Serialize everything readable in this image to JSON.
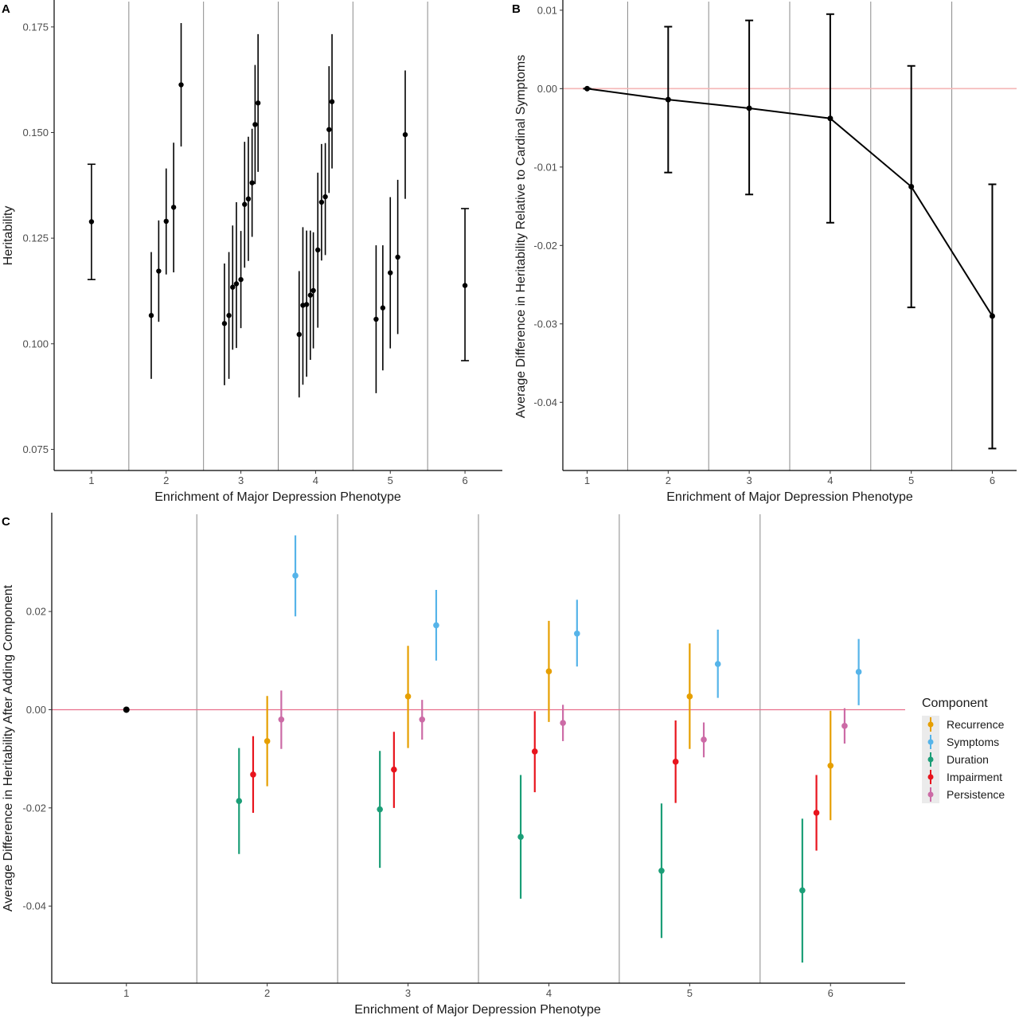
{
  "chart_data": [
    {
      "panel": "A",
      "type": "scatter",
      "xlabel": "Enrichment of Major Depression Phenotype",
      "ylabel": "Heritability",
      "x_ticks": [
        "1",
        "2",
        "3",
        "4",
        "5",
        "6"
      ],
      "y_ticks": [
        "0.075",
        "0.100",
        "0.125",
        "0.150",
        "0.175"
      ],
      "xlim": [
        0.5,
        6.5
      ],
      "ylim": [
        0.07,
        0.181
      ],
      "separators": [
        1.5,
        2.5,
        3.5,
        4.5,
        5.5
      ],
      "grid": false,
      "points": [
        {
          "x": 1.0,
          "y": 0.1289,
          "lo": 0.1152,
          "hi": 0.1425
        },
        {
          "x": 1.8,
          "y": 0.1067,
          "lo": 0.0917,
          "hi": 0.1217
        },
        {
          "x": 1.9,
          "y": 0.1172,
          "lo": 0.1052,
          "hi": 0.1292
        },
        {
          "x": 2.0,
          "y": 0.129,
          "lo": 0.1164,
          "hi": 0.1415
        },
        {
          "x": 2.1,
          "y": 0.1323,
          "lo": 0.1169,
          "hi": 0.1476
        },
        {
          "x": 2.2,
          "y": 0.1613,
          "lo": 0.1467,
          "hi": 0.1759
        },
        {
          "x": 2.78,
          "y": 0.1048,
          "lo": 0.0902,
          "hi": 0.119
        },
        {
          "x": 2.84,
          "y": 0.1067,
          "lo": 0.0917,
          "hi": 0.1217
        },
        {
          "x": 2.89,
          "y": 0.1134,
          "lo": 0.0986,
          "hi": 0.128
        },
        {
          "x": 2.94,
          "y": 0.1142,
          "lo": 0.099,
          "hi": 0.1335
        },
        {
          "x": 3.0,
          "y": 0.1152,
          "lo": 0.1037,
          "hi": 0.1267
        },
        {
          "x": 3.05,
          "y": 0.133,
          "lo": 0.118,
          "hi": 0.1478
        },
        {
          "x": 3.1,
          "y": 0.1343,
          "lo": 0.1196,
          "hi": 0.149
        },
        {
          "x": 3.15,
          "y": 0.1381,
          "lo": 0.1253,
          "hi": 0.1509
        },
        {
          "x": 3.19,
          "y": 0.1519,
          "lo": 0.1378,
          "hi": 0.166
        },
        {
          "x": 3.23,
          "y": 0.157,
          "lo": 0.1407,
          "hi": 0.1733
        },
        {
          "x": 3.78,
          "y": 0.1022,
          "lo": 0.0873,
          "hi": 0.1172
        },
        {
          "x": 3.83,
          "y": 0.1091,
          "lo": 0.0903,
          "hi": 0.1276
        },
        {
          "x": 3.88,
          "y": 0.1093,
          "lo": 0.0922,
          "hi": 0.1268
        },
        {
          "x": 3.93,
          "y": 0.1115,
          "lo": 0.0962,
          "hi": 0.1268
        },
        {
          "x": 3.97,
          "y": 0.1126,
          "lo": 0.0989,
          "hi": 0.1264
        },
        {
          "x": 4.03,
          "y": 0.1222,
          "lo": 0.1038,
          "hi": 0.1405
        },
        {
          "x": 4.08,
          "y": 0.1335,
          "lo": 0.1197,
          "hi": 0.1473
        },
        {
          "x": 4.13,
          "y": 0.1348,
          "lo": 0.121,
          "hi": 0.1475
        },
        {
          "x": 4.18,
          "y": 0.1507,
          "lo": 0.1357,
          "hi": 0.1657
        },
        {
          "x": 4.22,
          "y": 0.1573,
          "lo": 0.1415,
          "hi": 0.1733
        },
        {
          "x": 4.81,
          "y": 0.1058,
          "lo": 0.0883,
          "hi": 0.1233
        },
        {
          "x": 4.9,
          "y": 0.1085,
          "lo": 0.0937,
          "hi": 0.1233
        },
        {
          "x": 5.0,
          "y": 0.1168,
          "lo": 0.0989,
          "hi": 0.1347
        },
        {
          "x": 5.1,
          "y": 0.1205,
          "lo": 0.1023,
          "hi": 0.1388
        },
        {
          "x": 5.2,
          "y": 0.1495,
          "lo": 0.1343,
          "hi": 0.1647
        },
        {
          "x": 6.0,
          "y": 0.1138,
          "lo": 0.096,
          "hi": 0.132
        }
      ]
    },
    {
      "panel": "B",
      "type": "line",
      "xlabel": "Enrichment of Major Depression Phenotype",
      "ylabel": "Average Difference in Heritability Relative to Cardinal Symptoms",
      "x_ticks": [
        "1",
        "2",
        "3",
        "4",
        "5",
        "6"
      ],
      "y_ticks": [
        "-0.04",
        "-0.03",
        "-0.02",
        "-0.01",
        "0.00",
        "0.01"
      ],
      "xlim": [
        0.7,
        6.3
      ],
      "ylim": [
        -0.0487,
        0.0111
      ],
      "separators": [
        1.5,
        2.5,
        3.5,
        4.5,
        5.5
      ],
      "reference_line": 0.0,
      "grid": false,
      "points": [
        {
          "x": 1,
          "y": 0.0,
          "lo": 0.0,
          "hi": 0.0
        },
        {
          "x": 2,
          "y": -0.0014,
          "lo": -0.0107,
          "hi": 0.0079
        },
        {
          "x": 3,
          "y": -0.0025,
          "lo": -0.0135,
          "hi": 0.0087
        },
        {
          "x": 4,
          "y": -0.0038,
          "lo": -0.0171,
          "hi": 0.0095
        },
        {
          "x": 5,
          "y": -0.0125,
          "lo": -0.0279,
          "hi": 0.0029
        },
        {
          "x": 6,
          "y": -0.029,
          "lo": -0.0459,
          "hi": -0.0122
        }
      ]
    },
    {
      "panel": "C",
      "type": "scatter",
      "xlabel": "Enrichment of Major Depression Phenotype",
      "ylabel": "Average Difference in Heritability After Adding Component",
      "x_ticks": [
        "1",
        "2",
        "3",
        "4",
        "5",
        "6"
      ],
      "y_ticks": [
        "-0.04",
        "-0.02",
        "0.00",
        "0.02"
      ],
      "xlim": [
        0.47,
        6.53
      ],
      "ylim": [
        -0.0557,
        0.0398
      ],
      "separators": [
        1.5,
        2.5,
        3.5,
        4.5,
        5.5
      ],
      "reference_line": 0.0,
      "grid": false,
      "legend": {
        "title": "Component",
        "position": "right"
      },
      "baseline_point": {
        "x": 1,
        "y": 0.0,
        "color": "#000000"
      },
      "series": [
        {
          "name": "Recurrence",
          "color": "#E69F00",
          "offset": 0.0,
          "values": [
            -0.0064,
            0.0027,
            0.0078,
            0.0027,
            -0.0114
          ],
          "lo": [
            -0.0156,
            -0.0078,
            -0.0025,
            -0.008,
            -0.0225
          ],
          "hi": [
            0.0028,
            0.013,
            0.0181,
            0.0135,
            -0.0002
          ]
        },
        {
          "name": "Symptoms",
          "color": "#56B4E9",
          "offset": 0.2,
          "values": [
            0.0273,
            0.0172,
            0.0155,
            0.0093,
            0.0077
          ],
          "lo": [
            0.019,
            0.01,
            0.0088,
            0.0024,
            0.0009
          ],
          "hi": [
            0.0355,
            0.0244,
            0.0224,
            0.0163,
            0.0144
          ]
        },
        {
          "name": "Duration",
          "color": "#1B9E77",
          "offset": -0.2,
          "values": [
            -0.0186,
            -0.0203,
            -0.0259,
            -0.0328,
            -0.0368
          ],
          "lo": [
            -0.0294,
            -0.0322,
            -0.0385,
            -0.0465,
            -0.0515
          ],
          "hi": [
            -0.0078,
            -0.0084,
            -0.0133,
            -0.0191,
            -0.0222
          ]
        },
        {
          "name": "Impairment",
          "color": "#E8141D",
          "offset": -0.1,
          "values": [
            -0.0132,
            -0.0122,
            -0.0085,
            -0.0106,
            -0.021
          ],
          "lo": [
            -0.021,
            -0.02,
            -0.0168,
            -0.019,
            -0.0287
          ],
          "hi": [
            -0.0054,
            -0.0045,
            -0.0003,
            -0.0022,
            -0.0133
          ]
        },
        {
          "name": "Persistence",
          "color": "#CC6BA6",
          "offset": 0.1,
          "values": [
            -0.002,
            -0.002,
            -0.0027,
            -0.0061,
            -0.0033
          ],
          "lo": [
            -0.008,
            -0.0061,
            -0.0064,
            -0.0097,
            -0.0069
          ],
          "hi": [
            0.0039,
            0.002,
            0.001,
            -0.0026,
            0.0003
          ]
        }
      ],
      "series_x": [
        2,
        3,
        4,
        5,
        6
      ]
    }
  ]
}
